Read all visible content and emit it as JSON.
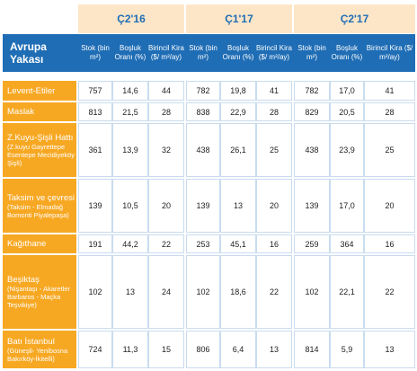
{
  "table": {
    "periods": [
      "Ç2'16",
      "Ç1'17",
      "Ç2'17"
    ],
    "region_header": "Avrupa Yakası",
    "column_headers": [
      "Stok (bin m²)",
      "Boşluk Oranı (%)",
      "Birincil Kira ($/ m²/ay)"
    ],
    "rows": [
      {
        "name": "Levent-Etiler",
        "sub": null,
        "values": [
          "757",
          "14,6",
          "44",
          "782",
          "19,8",
          "41",
          "782",
          "17,0",
          "41"
        ]
      },
      {
        "name": "Maslak",
        "sub": null,
        "values": [
          "813",
          "21,5",
          "28",
          "838",
          "22,9",
          "28",
          "829",
          "20,5",
          "28"
        ]
      },
      {
        "name": "Z.Kuyu-Şişli Hattı",
        "sub": "(Z.kuyu Gayrettepe Esentepe Mecidiyeköy Şişli)",
        "values": [
          "361",
          "13,9",
          "32",
          "438",
          "26,1",
          "25",
          "438",
          "23,9",
          "25"
        ]
      },
      {
        "name": "Taksim ve çevresi",
        "sub": "(Taksim - Elmadağ Bomonti Piyalepaşa)",
        "values": [
          "139",
          "10,5",
          "20",
          "139",
          "13",
          "20",
          "139",
          "17,0",
          "20"
        ]
      },
      {
        "name": "Kağıthane",
        "sub": null,
        "values": [
          "191",
          "44,2",
          "22",
          "253",
          "45,1",
          "16",
          "259",
          "364",
          "16"
        ]
      },
      {
        "name": "Beşiktaş",
        "sub": "(Nişantaşı - Akaretler Barbaros - Maçka Teşvikiye)",
        "values": [
          "102",
          "13",
          "24",
          "102",
          "18,6",
          "22",
          "102",
          "22,1",
          "22"
        ]
      },
      {
        "name": "Batı İstanbul",
        "sub": "(Güneşli- Yenibosna Bakırköy-İkitelli)",
        "values": [
          "724",
          "11,3",
          "15",
          "806",
          "6,4",
          "13",
          "814",
          "5,9",
          "13"
        ]
      }
    ]
  }
}
